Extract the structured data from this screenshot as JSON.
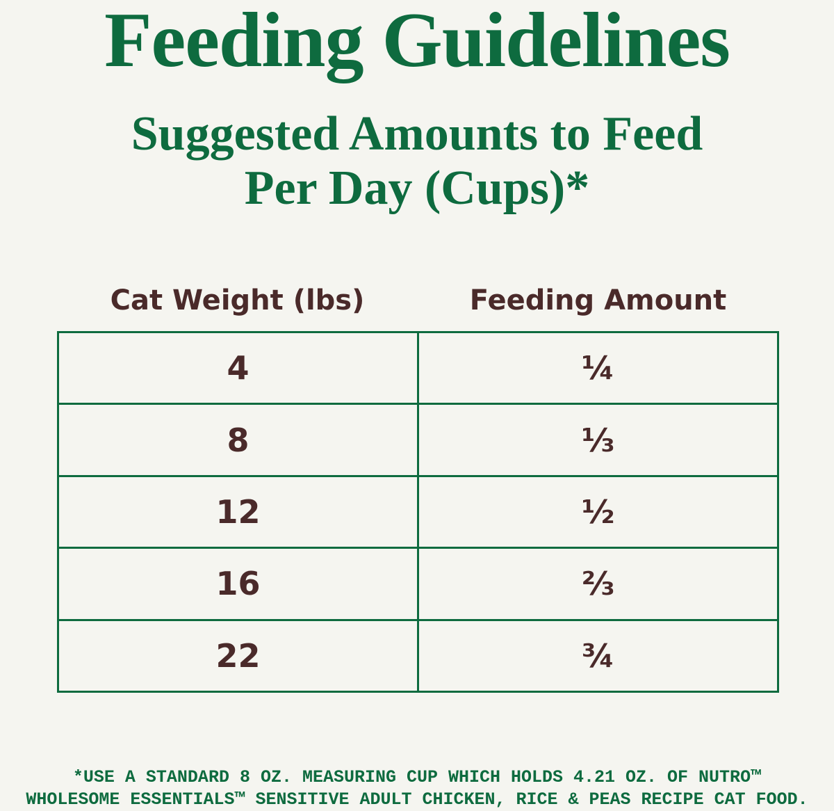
{
  "header": {
    "title": "Feeding Guidelines",
    "subtitle_lines": [
      "Suggested Amounts to Feed",
      "Per Day (Cups)*"
    ]
  },
  "table": {
    "columns": [
      "Cat Weight (lbs)",
      "Feeding Amount"
    ],
    "rows": [
      [
        "4",
        "¼"
      ],
      [
        "8",
        "⅓"
      ],
      [
        "12",
        "½"
      ],
      [
        "16",
        "⅔"
      ],
      [
        "22",
        "¾"
      ]
    ]
  },
  "footnote": {
    "lines": [
      "*USE A STANDARD 8 OZ. MEASURING CUP WHICH HOLDS 4.21 OZ. OF NUTRO™",
      "WHOLESOME ESSENTIALS™ SENSITIVE ADULT CHICKEN, RICE & PEAS RECIPE CAT FOOD."
    ]
  }
}
